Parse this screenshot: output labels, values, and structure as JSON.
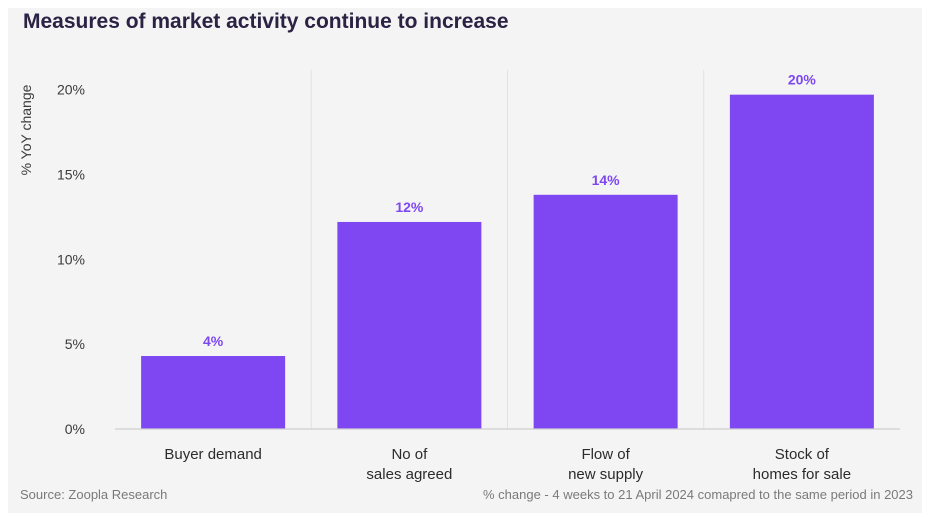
{
  "title": "Measures of market activity continue to increase",
  "ylabel": "% YoY change",
  "source": "Source: Zoopla Research",
  "note": "% change - 4 weeks to 21 April 2024 comapred to the same period in 2023",
  "colors": {
    "bar": "#7e47f2",
    "label": "#7e47f2",
    "axis": "#cfcfcf",
    "divider": "#e2e2e2",
    "text": "#2b2244"
  },
  "chart_data": {
    "type": "bar",
    "categories": [
      [
        "Buyer demand"
      ],
      [
        "No of",
        "sales agreed"
      ],
      [
        "Flow of",
        "new supply"
      ],
      [
        "Stock of",
        "homes for sale"
      ]
    ],
    "values": [
      4.3,
      12.2,
      13.8,
      19.7
    ],
    "data_labels": [
      "4%",
      "12%",
      "14%",
      "20%"
    ],
    "yticks": [
      0,
      5,
      10,
      15,
      20
    ],
    "ytick_labels": [
      "0%",
      "5%",
      "10%",
      "15%",
      "20%"
    ],
    "ylim": [
      0,
      20.8
    ],
    "ylabel": "% YoY change",
    "title": "Measures of market activity continue to increase",
    "grid": false
  }
}
